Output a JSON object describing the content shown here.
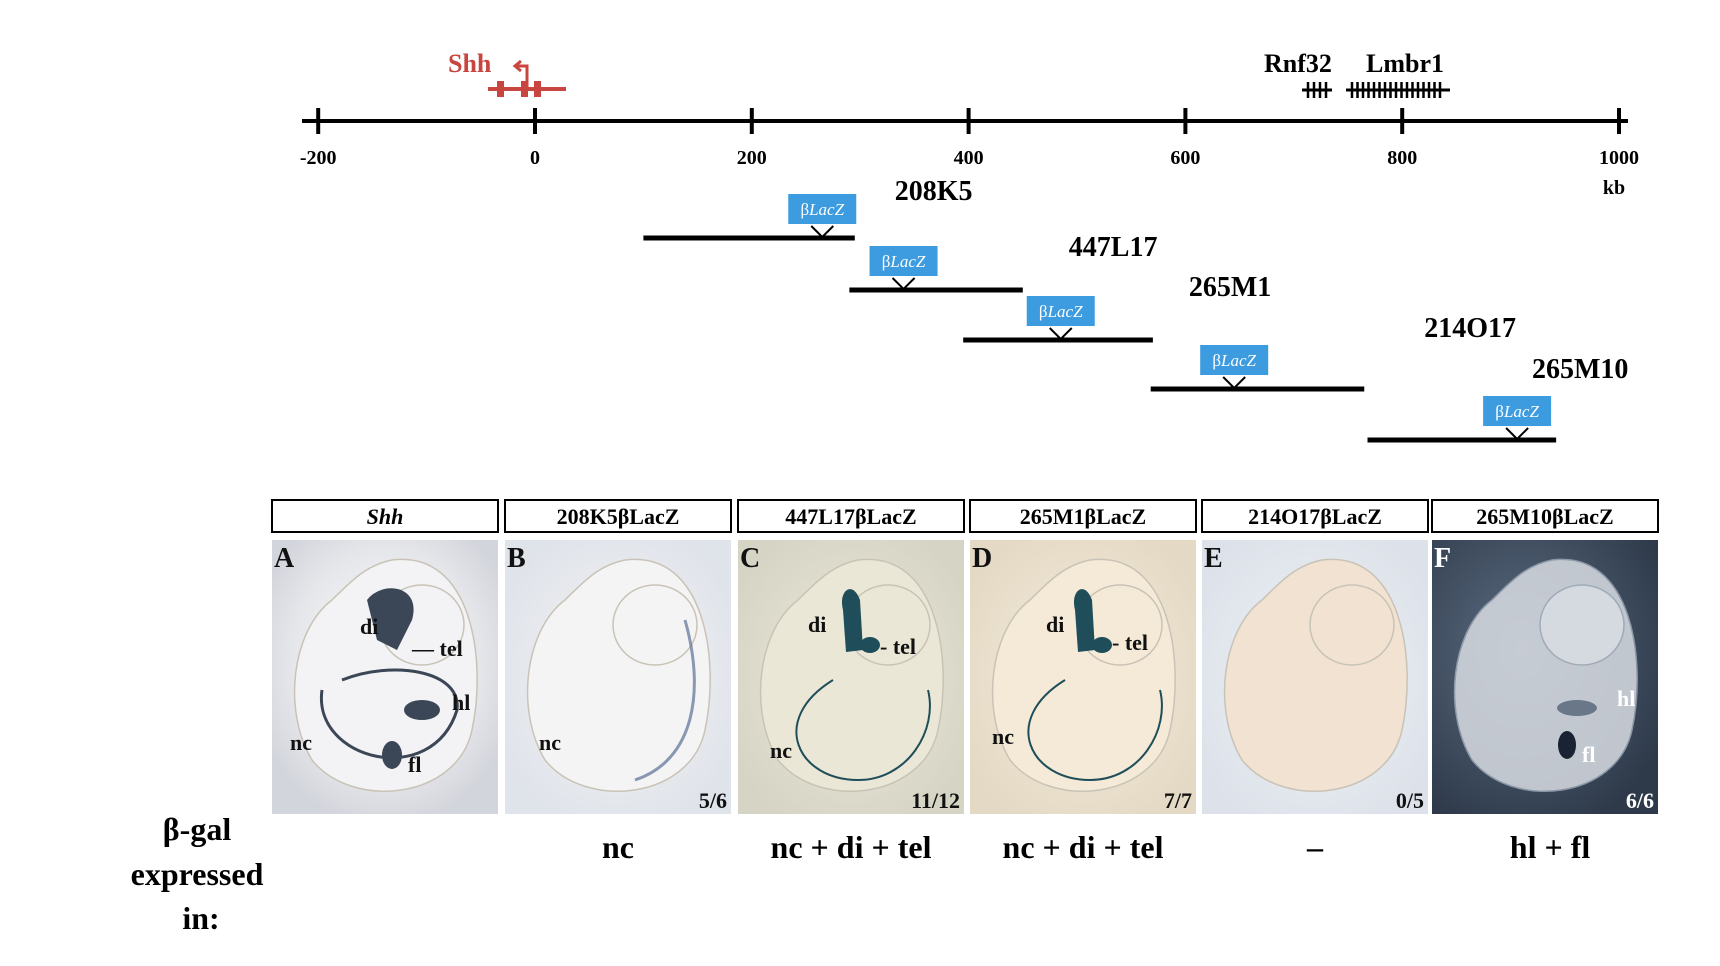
{
  "map": {
    "scale_unit": "kb",
    "ticks": [
      "-200",
      "0",
      "200",
      "400",
      "600",
      "800",
      "1000"
    ],
    "ticks_kb": [
      -200,
      0,
      200,
      400,
      600,
      800,
      1000
    ],
    "genes": [
      {
        "name": "Shh",
        "color": "#c8463f"
      },
      {
        "name": "Rnf32",
        "color": "#000000"
      },
      {
        "name": "Lmbr1",
        "color": "#000000"
      }
    ],
    "bac_clones": [
      {
        "name": "208K5",
        "start_kb": 100,
        "end_kb": 295,
        "reporter_kb": 265
      },
      {
        "name": "447L17",
        "start_kb": 290,
        "end_kb": 450,
        "reporter_kb": 340
      },
      {
        "name": "265M1",
        "start_kb": 395,
        "end_kb": 570,
        "reporter_kb": 485
      },
      {
        "name": "214O17",
        "start_kb": 568,
        "end_kb": 765,
        "reporter_kb": 645
      },
      {
        "name": "265M10",
        "start_kb": 768,
        "end_kb": 942,
        "reporter_kb": 906
      }
    ],
    "reporter_label_prefix": "β",
    "reporter_label_italic": "LacZ",
    "reporter_color": "#3d9be0"
  },
  "panels": [
    {
      "header": "Shh",
      "letter": "A",
      "score": "",
      "expression": "",
      "bg": "#eaeaec",
      "labels": [
        {
          "t": "di"
        },
        {
          "t": "— tel"
        },
        {
          "t": "hl"
        },
        {
          "t": "nc"
        },
        {
          "t": "fl"
        }
      ]
    },
    {
      "header": "208K5βLacZ",
      "letter": "B",
      "score": "5/6",
      "expression": "nc",
      "bg": "#eceef2",
      "labels": [
        {
          "t": "nc"
        }
      ]
    },
    {
      "header": "447L17βLacZ",
      "letter": "C",
      "score": "11/12",
      "expression": "nc + di + tel",
      "bg": "#e4e2d4",
      "labels": [
        {
          "t": "di"
        },
        {
          "t": "- tel"
        },
        {
          "t": "nc"
        }
      ]
    },
    {
      "header": "265M1βLacZ",
      "letter": "D",
      "score": "7/7",
      "expression": "nc + di + tel",
      "bg": "#efe6d6",
      "labels": [
        {
          "t": "di"
        },
        {
          "t": "- tel"
        },
        {
          "t": "nc"
        }
      ]
    },
    {
      "header": "214O17βLacZ",
      "letter": "E",
      "score": "0/5",
      "expression": "–",
      "bg": "#e6e9ef",
      "labels": []
    },
    {
      "header": "265M10βLacZ",
      "letter": "F",
      "score": "6/6",
      "expression": "hl + fl",
      "bg": "#3c4a5c",
      "labels": [
        {
          "t": "hl"
        },
        {
          "t": "fl"
        }
      ]
    }
  ],
  "row_label": [
    "β-gal",
    "expressed",
    "in:"
  ]
}
